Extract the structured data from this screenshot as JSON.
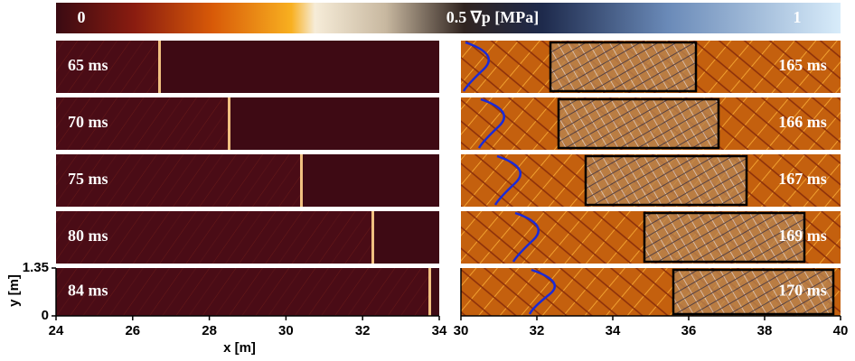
{
  "colorbar": {
    "min_label": "0",
    "mid_label": "0.5 ∇p [MPa]",
    "max_label": "1"
  },
  "left": {
    "times": [
      "65 ms",
      "70 ms",
      "75 ms",
      "80 ms",
      "84 ms"
    ],
    "xlim": [
      24,
      34
    ],
    "xticks": [
      24,
      26,
      28,
      30,
      32,
      34
    ],
    "xlabel": "x [m]",
    "ylim": [
      0,
      1.35
    ],
    "yticks": [
      0,
      1.35
    ],
    "ylabel": "y [m]"
  },
  "right": {
    "times": [
      "165 ms",
      "166 ms",
      "167 ms",
      "169 ms",
      "170 ms"
    ],
    "xlim": [
      30,
      40
    ],
    "xticks": [
      30,
      32,
      34,
      36,
      38,
      40
    ]
  }
}
